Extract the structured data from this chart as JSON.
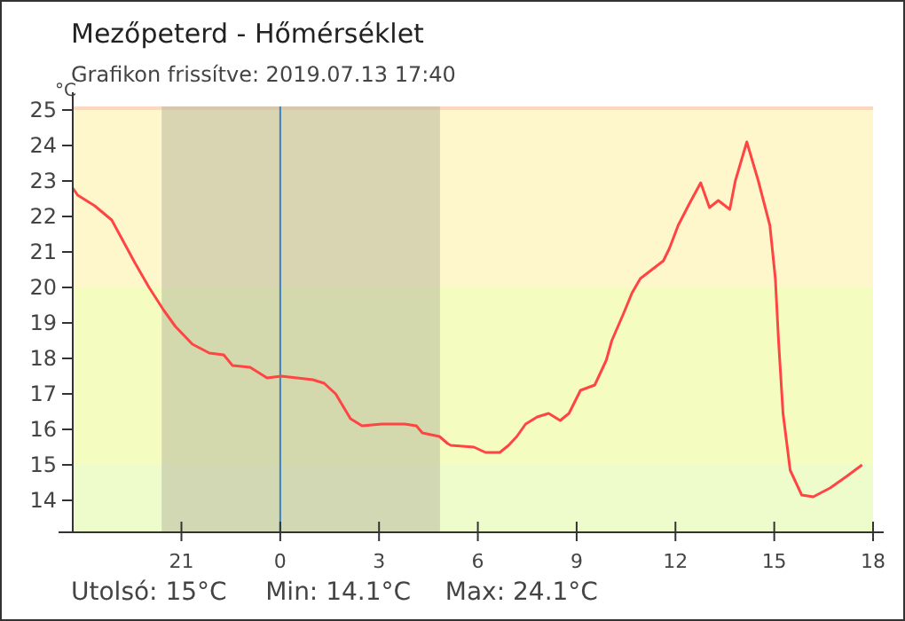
{
  "chart_data": {
    "type": "line",
    "title": "Mezőpeterd - Hőmérséklet",
    "subtitle": "Grafikon frissítve: 2019.07.13 17:40",
    "ylabel": "°C",
    "annotations": [
      "Utolsó: 15°C",
      "Min: 14.1°C",
      "Max: 24.1°C"
    ],
    "xlim": [
      "2019-07-12T17:42",
      "2019-07-13T18:00"
    ],
    "ylim": [
      13.1,
      25.1
    ],
    "xticks": [
      {
        "value": "2019-07-12T21:00",
        "label": "21"
      },
      {
        "value": "2019-07-13T00:00",
        "label": "0"
      },
      {
        "value": "2019-07-13T03:00",
        "label": "3"
      },
      {
        "value": "2019-07-13T06:00",
        "label": "6"
      },
      {
        "value": "2019-07-13T09:00",
        "label": "9"
      },
      {
        "value": "2019-07-13T12:00",
        "label": "12"
      },
      {
        "value": "2019-07-13T15:00",
        "label": "15"
      },
      {
        "value": "2019-07-13T18:00",
        "label": "18"
      }
    ],
    "yticks": [
      14,
      15,
      16,
      17,
      18,
      19,
      20,
      21,
      22,
      23,
      24,
      25
    ],
    "grid": false,
    "bands": [
      {
        "axis": "y",
        "from": 13.1,
        "to": 15,
        "color": "#eefccc"
      },
      {
        "axis": "y",
        "from": 15,
        "to": 20,
        "color": "#f5fcc0"
      },
      {
        "axis": "y",
        "from": 20,
        "to": 25,
        "color": "#fff7cc"
      },
      {
        "axis": "y",
        "from": 25,
        "to": 25.1,
        "color": "#fdd8c0"
      },
      {
        "axis": "x",
        "from": "2019-07-12T20:24",
        "to": "2019-07-13T04:51",
        "color": "#b4b49a"
      }
    ],
    "ref_lines": [
      {
        "axis": "x",
        "value": "2019-07-13T00:00",
        "color": "#3a7fc0"
      }
    ],
    "series": [
      {
        "color": "#ff4444",
        "x": [
          "2019-07-12T17:42",
          "2019-07-12T17:51",
          "2019-07-12T18:22",
          "2019-07-12T18:53",
          "2019-07-12T19:14",
          "2019-07-12T19:35",
          "2019-07-12T20:01",
          "2019-07-12T20:28",
          "2019-07-12T20:49",
          "2019-07-12T21:20",
          "2019-07-12T21:51",
          "2019-07-12T22:17",
          "2019-07-12T22:33",
          "2019-07-12T23:05",
          "2019-07-12T23:36",
          "2019-07-13T00:02",
          "2019-07-13T00:59",
          "2019-07-13T01:20",
          "2019-07-13T01:41",
          "2019-07-13T02:08",
          "2019-07-13T02:29",
          "2019-07-13T03:05",
          "2019-07-13T03:47",
          "2019-07-13T04:08",
          "2019-07-13T04:19",
          "2019-07-13T04:50",
          "2019-07-13T05:05",
          "2019-07-13T05:11",
          "2019-07-13T05:53",
          "2019-07-13T06:14",
          "2019-07-13T06:40",
          "2019-07-13T06:56",
          "2019-07-13T07:11",
          "2019-07-13T07:27",
          "2019-07-13T07:48",
          "2019-07-13T08:09",
          "2019-07-13T08:30",
          "2019-07-13T08:46",
          "2019-07-13T09:07",
          "2019-07-13T09:33",
          "2019-07-13T09:54",
          "2019-07-13T10:04",
          "2019-07-13T10:25",
          "2019-07-13T10:41",
          "2019-07-13T10:56",
          "2019-07-13T11:17",
          "2019-07-13T11:38",
          "2019-07-13T11:49",
          "2019-07-13T12:05",
          "2019-07-13T12:25",
          "2019-07-13T12:46",
          "2019-07-13T13:02",
          "2019-07-13T13:18",
          "2019-07-13T13:39",
          "2019-07-13T13:49",
          "2019-07-13T14:10",
          "2019-07-13T14:31",
          "2019-07-13T14:52",
          "2019-07-13T15:02",
          "2019-07-13T15:08",
          "2019-07-13T15:16",
          "2019-07-13T15:29",
          "2019-07-13T15:50",
          "2019-07-13T16:11",
          "2019-07-13T16:42",
          "2019-07-13T17:14",
          "2019-07-13T17:40"
        ],
        "values": [
          22.8,
          22.6,
          22.3,
          21.9,
          21.3,
          20.7,
          20.0,
          19.35,
          18.9,
          18.4,
          18.15,
          18.1,
          17.8,
          17.75,
          17.45,
          17.5,
          17.4,
          17.3,
          17.0,
          16.3,
          16.1,
          16.15,
          16.15,
          16.1,
          15.9,
          15.8,
          15.6,
          15.55,
          15.5,
          15.35,
          15.35,
          15.55,
          15.8,
          16.15,
          16.35,
          16.45,
          16.25,
          16.45,
          17.1,
          17.25,
          17.95,
          18.5,
          19.25,
          19.85,
          20.25,
          20.5,
          20.75,
          21.1,
          21.75,
          22.35,
          22.95,
          22.25,
          22.45,
          22.2,
          23.0,
          24.1,
          23.0,
          21.75,
          20.25,
          18.45,
          16.45,
          14.85,
          14.15,
          14.1,
          14.35,
          14.7,
          15.0
        ]
      }
    ]
  }
}
